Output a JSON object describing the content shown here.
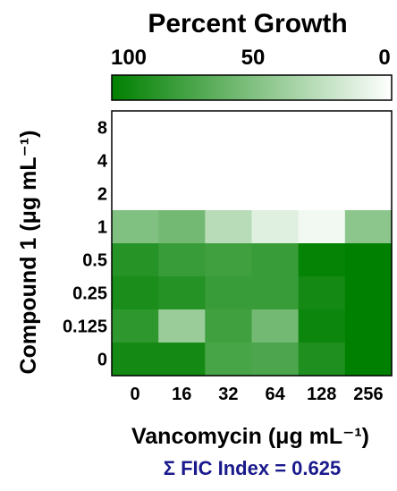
{
  "chart_data": {
    "type": "heatmap",
    "title": "Percent Growth",
    "xlabel": "Vancomycin (μg mL⁻¹)",
    "ylabel": "Compound 1 (μg mL⁻¹)",
    "x_categories": [
      "0",
      "16",
      "32",
      "64",
      "128",
      "256"
    ],
    "y_categories": [
      "8",
      "4",
      "2",
      "1",
      "0.5",
      "0.25",
      "0.125",
      "0"
    ],
    "colorbar": {
      "ticks": [
        "100",
        "50",
        "0"
      ],
      "range": [
        100,
        0
      ],
      "high_color": "#008000",
      "low_color": "#ffffff"
    },
    "values": [
      [
        0,
        0,
        0,
        0,
        0,
        0
      ],
      [
        0,
        0,
        0,
        0,
        0,
        0
      ],
      [
        0,
        0,
        0,
        0,
        0,
        0
      ],
      [
        50,
        55,
        28,
        12,
        5,
        45
      ],
      [
        85,
        78,
        75,
        78,
        98,
        100
      ],
      [
        90,
        86,
        78,
        78,
        92,
        100
      ],
      [
        82,
        40,
        75,
        55,
        95,
        100
      ],
      [
        92,
        92,
        72,
        70,
        88,
        100
      ]
    ],
    "annotation": "Σ FIC Index = 0.625"
  }
}
